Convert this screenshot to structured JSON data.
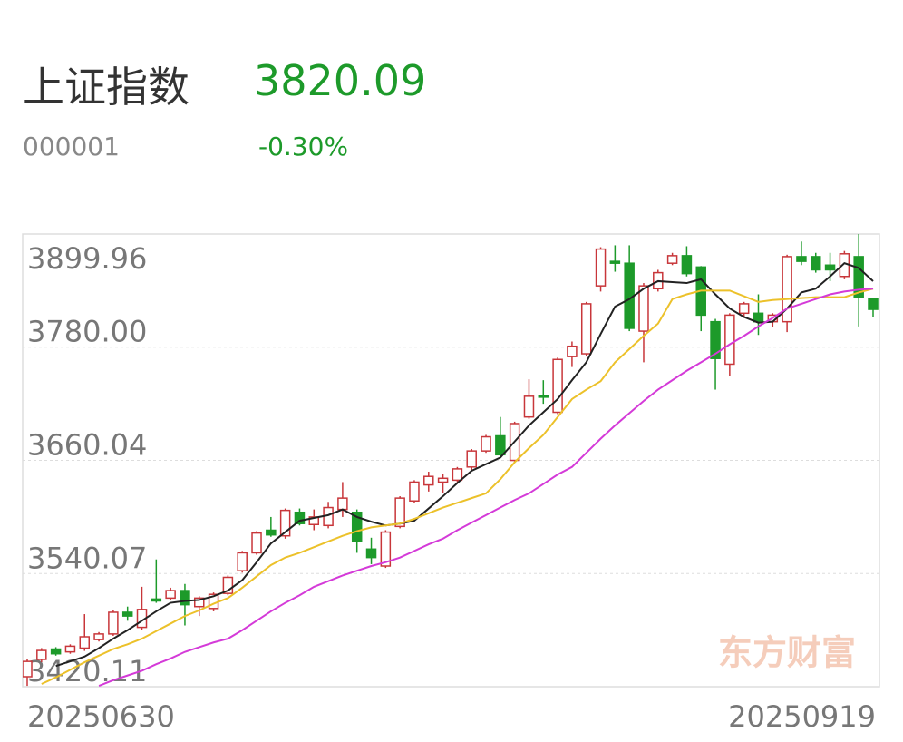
{
  "header": {
    "title": "上证指数",
    "price": "3820.09",
    "code": "000001",
    "change": "-0.30%"
  },
  "chart_data": {
    "type": "candlestick",
    "categories": [
      "20250630",
      null,
      null,
      null,
      null,
      null,
      null,
      null,
      null,
      null,
      null,
      null,
      null,
      null,
      null,
      null,
      null,
      null,
      null,
      null,
      null,
      null,
      null,
      null,
      null,
      null,
      null,
      null,
      null,
      null,
      null,
      null,
      null,
      null,
      null,
      null,
      null,
      null,
      null,
      null,
      null,
      null,
      null,
      null,
      null,
      null,
      null,
      null,
      null,
      null,
      null,
      null,
      null,
      null,
      null,
      null,
      null,
      null,
      null,
      "20250919"
    ],
    "open": [
      3430.7,
      3449,
      3460,
      3457,
      3461,
      3470,
      3476,
      3499,
      3483,
      3513,
      3514,
      3522,
      3505,
      3503,
      3519,
      3543,
      3562,
      3586,
      3580,
      3605,
      3592,
      3591,
      3608,
      3605,
      3566,
      3548,
      3590,
      3617,
      3634,
      3637,
      3639,
      3653,
      3670,
      3686,
      3660,
      3706,
      3729,
      3711,
      3770,
      3773,
      3845,
      3871,
      3869,
      3797,
      3842,
      3869,
      3877,
      3865,
      3807,
      3762,
      3816,
      3816,
      3807,
      3807,
      3876,
      3876,
      3867,
      3855,
      3876,
      3831
    ],
    "high": [
      3449,
      3461,
      3462,
      3465,
      3497,
      3478,
      3501,
      3505,
      3526,
      3555,
      3525,
      3529,
      3516,
      3520,
      3538,
      3564,
      3585,
      3600,
      3609,
      3609,
      3608,
      3616,
      3637,
      3608,
      3578,
      3586,
      3622,
      3639,
      3648,
      3646,
      3653,
      3672,
      3687,
      3706,
      3701,
      3746,
      3745,
      3769,
      3786,
      3828,
      3886,
      3888,
      3888,
      3848,
      3862,
      3880,
      3887,
      3866,
      3810,
      3816,
      3828,
      3836,
      3816,
      3878,
      3892,
      3880,
      3880,
      3882,
      3900,
      3832
    ],
    "low": [
      3421,
      3446,
      3453,
      3455,
      3458,
      3468,
      3474,
      3490,
      3480,
      3509,
      3512,
      3485,
      3495,
      3500,
      3517,
      3541,
      3560,
      3579,
      3577,
      3591,
      3586,
      3588,
      3600,
      3562,
      3550,
      3546,
      3588,
      3615,
      3627,
      3625,
      3637,
      3650,
      3668,
      3663,
      3658,
      3704,
      3720,
      3709,
      3759,
      3771,
      3839,
      3860,
      3797,
      3764,
      3839,
      3867,
      3855,
      3797,
      3735,
      3749,
      3811,
      3793,
      3801,
      3796,
      3867,
      3859,
      3850,
      3852,
      3802,
      3812
    ],
    "close": [
      3446.9,
      3458.5,
      3455,
      3463,
      3473,
      3476,
      3499,
      3495,
      3502,
      3511,
      3522,
      3507,
      3514,
      3518,
      3536,
      3562,
      3583,
      3581,
      3607,
      3593,
      3600,
      3610,
      3620,
      3574,
      3557,
      3584,
      3620,
      3637,
      3643,
      3641,
      3651,
      3670,
      3685,
      3666,
      3699,
      3728,
      3727,
      3767,
      3781,
      3826,
      3884,
      3869,
      3800,
      3845,
      3859,
      3877,
      3858,
      3814,
      3768,
      3814,
      3826,
      3807,
      3814,
      3876,
      3871,
      3862,
      3862,
      3879,
      3833,
      3820.09
    ],
    "up_color": "#c8363a",
    "down_color": "#1d9a2a",
    "lines": [
      {
        "color": "#222222",
        "values": [
          null,
          null,
          3442,
          3447,
          3452,
          3461,
          3471,
          3480,
          3490,
          3500,
          3509,
          3511,
          3512,
          3516,
          3522,
          3533,
          3552,
          3572,
          3584,
          3596,
          3599,
          3602,
          3608,
          3600,
          3595,
          3591,
          3593,
          3596,
          3609,
          3622,
          3636,
          3649,
          3656,
          3663,
          3680,
          3697,
          3711,
          3725,
          3745,
          3764,
          3794,
          3823,
          3831,
          3842,
          3850,
          3849,
          3848,
          3852,
          3836,
          3821,
          3812,
          3806,
          3807,
          3821,
          3838,
          3842,
          3855,
          3869,
          3864,
          3850
        ]
      },
      {
        "color": "#ecc12a",
        "values": [
          null,
          3423,
          3430,
          3438,
          3446,
          3453,
          3460,
          3465,
          3471,
          3479,
          3487,
          3495,
          3501,
          3508,
          3514,
          3525,
          3537,
          3549,
          3557,
          3562,
          3568,
          3574,
          3580,
          3585,
          3589,
          3591,
          3593,
          3598,
          3604,
          3610,
          3615,
          3620,
          3625,
          3640,
          3658,
          3673,
          3687,
          3706,
          3725,
          3735,
          3744,
          3764,
          3778,
          3792,
          3805,
          3831,
          3836,
          3840,
          3840,
          3840,
          3834,
          3828,
          3830,
          3831,
          3832,
          3833,
          3833,
          3833,
          3838,
          3842
        ]
      },
      {
        "color": "#d43ad8",
        "values": [
          null,
          null,
          null,
          null,
          null,
          3421,
          3427,
          3432,
          3437,
          3444,
          3450,
          3457,
          3462,
          3467,
          3471,
          3480,
          3490,
          3500,
          3509,
          3517,
          3526,
          3532,
          3538,
          3543,
          3548,
          3552,
          3557,
          3564,
          3571,
          3577,
          3586,
          3594,
          3602,
          3610,
          3618,
          3625,
          3635,
          3645,
          3653,
          3668,
          3683,
          3697,
          3710,
          3723,
          3735,
          3745,
          3755,
          3764,
          3773,
          3783,
          3792,
          3802,
          3811,
          3821,
          3826,
          3831,
          3836,
          3839,
          3841,
          3842
        ]
      }
    ],
    "ylim": [
      3420.11,
      3899.96
    ],
    "yticks": [
      3899.96,
      3780.0,
      3660.04,
      3540.07,
      3420.11
    ],
    "grid": true,
    "watermark": "东方财富"
  }
}
